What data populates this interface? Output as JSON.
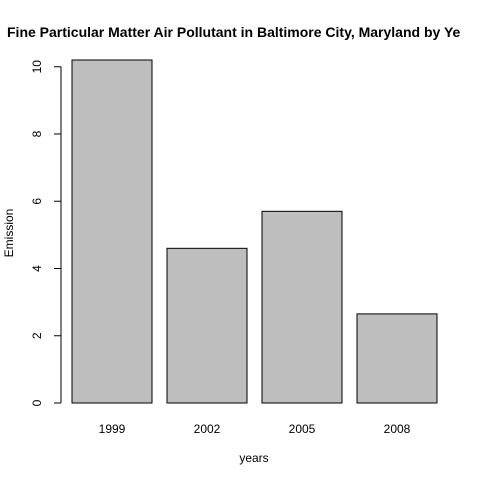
{
  "chart_data": {
    "type": "bar",
    "title": "Fine Particular Matter Air Pollutant in Baltimore City, Maryland by Ye",
    "xlabel": "years",
    "ylabel": "Emission",
    "categories": [
      "1999",
      "2002",
      "2005",
      "2008"
    ],
    "values": [
      10.2,
      4.6,
      5.7,
      2.65
    ],
    "ylim": [
      0,
      10.2
    ],
    "y_ticks": [
      "0",
      "2",
      "4",
      "6",
      "8",
      "10"
    ],
    "bar_color": "#bebebe",
    "grid": false,
    "legend": "none"
  }
}
